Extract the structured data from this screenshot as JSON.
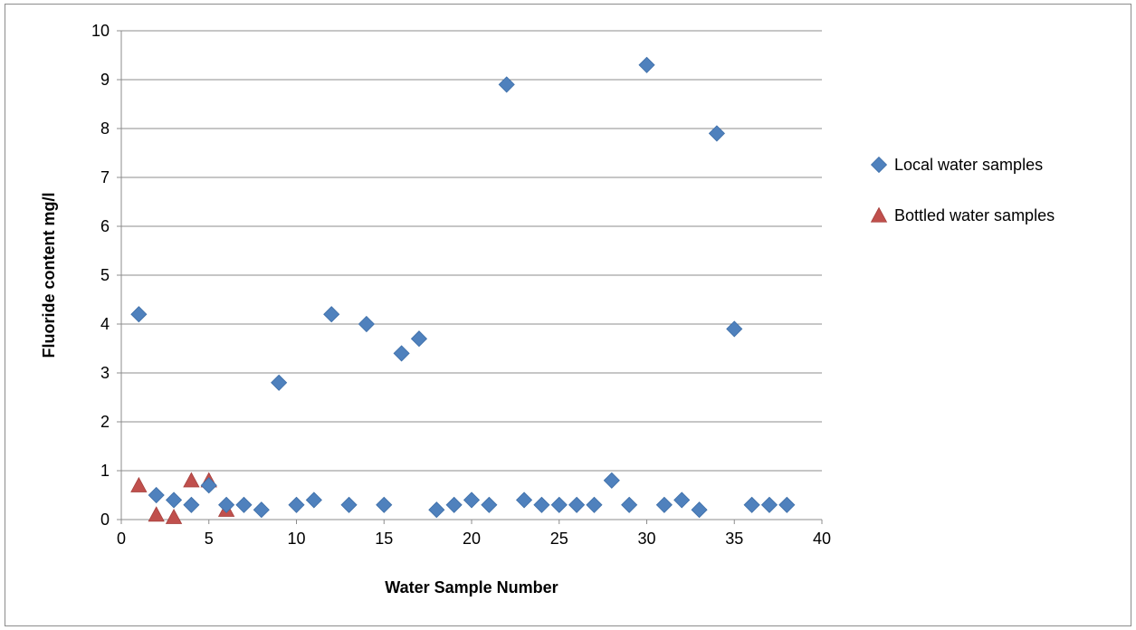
{
  "chart_data": {
    "type": "scatter",
    "xlabel": "Water Sample Number",
    "ylabel": "Fluoride content mg/l",
    "xlim": [
      0,
      40
    ],
    "ylim": [
      0,
      10
    ],
    "x_ticks": [
      "0",
      "5",
      "10",
      "15",
      "20",
      "25",
      "30",
      "35",
      "40"
    ],
    "y_ticks": [
      "0",
      "1",
      "2",
      "3",
      "4",
      "5",
      "6",
      "7",
      "8",
      "9",
      "10"
    ],
    "grid": "horizontal",
    "legend_position": "right",
    "series": [
      {
        "name": "Local water samples",
        "marker": "diamond",
        "color": "#4f81bd",
        "points": [
          [
            1,
            4.2
          ],
          [
            2,
            0.5
          ],
          [
            3,
            0.4
          ],
          [
            4,
            0.3
          ],
          [
            5,
            0.7
          ],
          [
            6,
            0.3
          ],
          [
            7,
            0.3
          ],
          [
            8,
            0.2
          ],
          [
            9,
            2.8
          ],
          [
            10,
            0.3
          ],
          [
            11,
            0.4
          ],
          [
            12,
            4.2
          ],
          [
            13,
            0.3
          ],
          [
            14,
            4.0
          ],
          [
            15,
            0.3
          ],
          [
            16,
            3.4
          ],
          [
            17,
            3.7
          ],
          [
            18,
            0.2
          ],
          [
            19,
            0.3
          ],
          [
            20,
            0.4
          ],
          [
            21,
            0.3
          ],
          [
            22,
            8.9
          ],
          [
            23,
            0.4
          ],
          [
            24,
            0.3
          ],
          [
            25,
            0.3
          ],
          [
            26,
            0.3
          ],
          [
            27,
            0.3
          ],
          [
            28,
            0.8
          ],
          [
            29,
            0.3
          ],
          [
            30,
            9.3
          ],
          [
            31,
            0.3
          ],
          [
            32,
            0.4
          ],
          [
            33,
            0.2
          ],
          [
            34,
            7.9
          ],
          [
            35,
            3.9
          ],
          [
            36,
            0.3
          ],
          [
            37,
            0.3
          ],
          [
            38,
            0.3
          ]
        ]
      },
      {
        "name": "Bottled water samples",
        "marker": "triangle",
        "color": "#c0504d",
        "points": [
          [
            1,
            0.7
          ],
          [
            2,
            0.1
          ],
          [
            3,
            0.05
          ],
          [
            4,
            0.8
          ],
          [
            5,
            0.8
          ],
          [
            6,
            0.2
          ]
        ]
      }
    ]
  }
}
